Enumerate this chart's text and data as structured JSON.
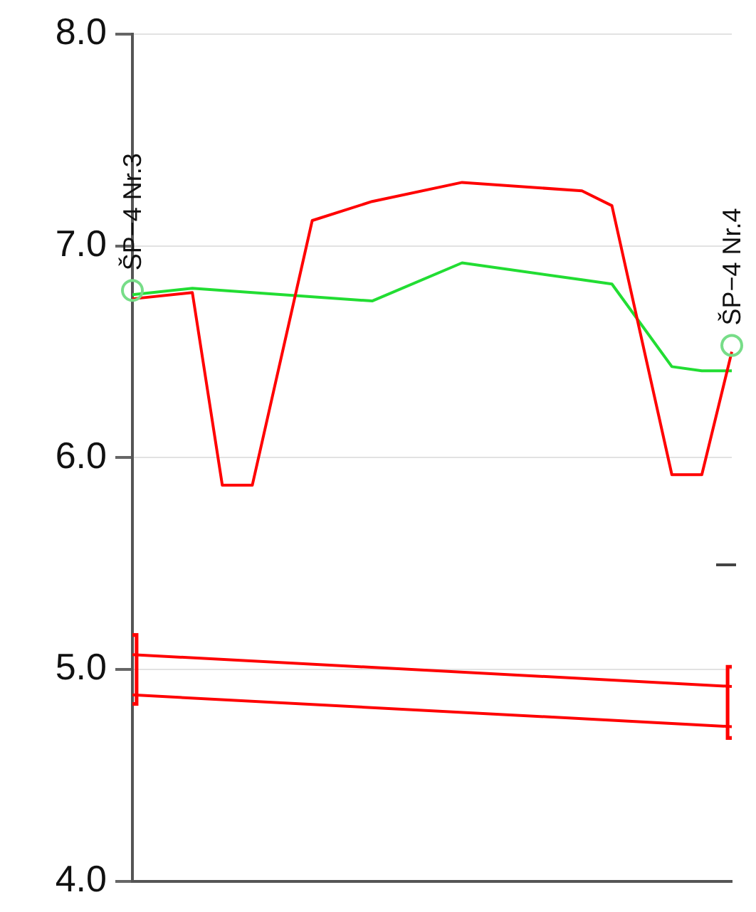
{
  "chart_data": {
    "type": "line",
    "categories": [
      null,
      null,
      null,
      null,
      null,
      null,
      null,
      null,
      null,
      null,
      null,
      null,
      null,
      null,
      null,
      null,
      null,
      null,
      null,
      null,
      null
    ],
    "ylim": [
      4,
      8
    ],
    "yticks": [
      {
        "value": 4,
        "label": "4.0"
      },
      {
        "value": 5,
        "label": "5.0"
      },
      {
        "value": 6,
        "label": "6.0"
      },
      {
        "value": 7,
        "label": "7.0"
      },
      {
        "value": 8,
        "label": "8.0"
      }
    ],
    "grid": "y",
    "tick_labels": "y",
    "line_style": "solid",
    "series": [
      {
        "marker": "none",
        "color": "#ff0000",
        "values": [
          6.75,
          null,
          6.78,
          5.87,
          5.87,
          null,
          7.12,
          null,
          7.21,
          null,
          null,
          7.3,
          null,
          null,
          null,
          7.26,
          7.19,
          null,
          5.92,
          5.92,
          6.5
        ]
      },
      {
        "marker": "none",
        "color": "#22dd33",
        "values": [
          6.77,
          null,
          6.8,
          null,
          null,
          null,
          null,
          null,
          6.74,
          null,
          null,
          6.92,
          null,
          null,
          null,
          6.84,
          6.82,
          null,
          6.43,
          6.41,
          6.41
        ]
      },
      {
        "marker": "none",
        "color": "#ff0000",
        "values": [
          5.07,
          null,
          null,
          null,
          null,
          null,
          null,
          null,
          null,
          null,
          null,
          null,
          null,
          null,
          null,
          null,
          null,
          null,
          null,
          null,
          4.92
        ]
      },
      {
        "marker": "none",
        "color": "#ff0000",
        "values": [
          4.88,
          null,
          null,
          null,
          null,
          null,
          null,
          null,
          null,
          null,
          null,
          null,
          null,
          null,
          null,
          null,
          null,
          null,
          null,
          null,
          4.73
        ]
      },
      {
        "type": "bar",
        "color": "#ff0000",
        "values": [
          0.34,
          null,
          null,
          null,
          null,
          null,
          null,
          null,
          null,
          null,
          null,
          null,
          null,
          null,
          null,
          null,
          null,
          null,
          null,
          null,
          0.35
        ],
        "base": [
          4.83,
          null,
          null,
          null,
          null,
          null,
          null,
          null,
          null,
          null,
          null,
          null,
          null,
          null,
          null,
          null,
          null,
          null,
          null,
          null,
          4.67
        ]
      },
      {
        "type": "scatter",
        "marker": "circle",
        "color": "#77dd88",
        "name": "ŠP−4 Nr.3",
        "values": [
          6.79,
          null,
          null,
          null,
          null,
          null,
          null,
          null,
          null,
          null,
          null,
          null,
          null,
          null,
          null,
          null,
          null,
          null,
          null,
          null,
          null
        ]
      },
      {
        "type": "scatter",
        "marker": "circle",
        "color": "#77dd88",
        "name": "ŠP−4 Nr.4",
        "values": [
          null,
          null,
          null,
          null,
          null,
          null,
          null,
          null,
          null,
          null,
          null,
          null,
          null,
          null,
          null,
          null,
          null,
          null,
          null,
          null,
          6.53
        ]
      }
    ]
  }
}
